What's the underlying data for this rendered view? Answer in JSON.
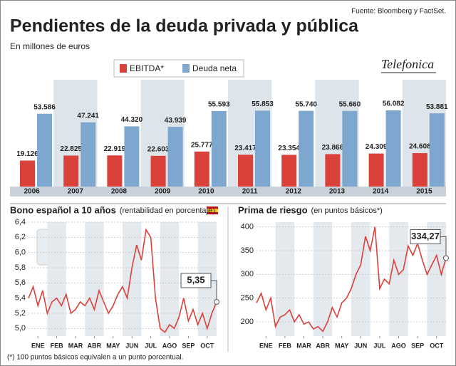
{
  "title": "Pendientes de la deuda privada y pública",
  "source": "Fuente: Bloomberg y FactSet.",
  "subtitle": "En millones de euros",
  "logo": "Telefonica",
  "footnote": "(*) 100 puntos básicos equivalen a un punto porcentual.",
  "chart_data": [
    {
      "type": "bar",
      "categories": [
        "2006",
        "2007",
        "2008",
        "2009",
        "2010",
        "2011",
        "2012",
        "2013",
        "2014",
        "2015"
      ],
      "series": [
        {
          "name": "EBITDA*",
          "color": "#d9413a",
          "values": [
            19126,
            22825,
            22919,
            22603,
            25777,
            23417,
            23354,
            23866,
            24309,
            24608
          ],
          "value_labels": [
            "19.126",
            "22.825",
            "22.919",
            "22.603",
            "25.777",
            "23.417",
            "23.354",
            "23.866",
            "24.309",
            "24.608"
          ]
        },
        {
          "name": "Deuda neta",
          "color": "#7ea7cf",
          "values": [
            53586,
            47241,
            44320,
            43939,
            55593,
            55853,
            55740,
            55660,
            56082,
            53881
          ],
          "value_labels": [
            "53.586",
            "47.241",
            "44.320",
            "43.939",
            "55.593",
            "55.853",
            "55.740",
            "55.660",
            "56.082",
            "53.881"
          ]
        }
      ]
    },
    {
      "type": "line",
      "title": "Bono español a 10 años",
      "subtitle": "(rentabilidad en porcentaje)",
      "color": "#d9413a",
      "x": [
        0,
        0.25,
        0.5,
        0.75,
        1,
        1.25,
        1.5,
        1.75,
        2,
        2.25,
        2.5,
        2.75,
        3,
        3.25,
        3.5,
        3.75,
        4,
        4.25,
        4.5,
        4.75,
        5,
        5.25,
        5.5,
        5.75,
        6,
        6.25,
        6.5,
        6.75,
        7,
        7.25,
        7.5,
        7.75,
        8,
        8.25,
        8.5,
        8.75,
        9,
        9.25,
        9.5,
        9.75,
        10
      ],
      "values": [
        5.4,
        5.55,
        5.3,
        5.5,
        5.2,
        5.35,
        5.4,
        5.3,
        5.45,
        5.2,
        5.25,
        5.35,
        5.3,
        5.4,
        5.25,
        5.5,
        5.35,
        5.2,
        5.3,
        5.45,
        5.55,
        5.4,
        5.8,
        6.1,
        5.9,
        6.3,
        6.2,
        5.4,
        5.0,
        4.95,
        5.05,
        5.0,
        5.15,
        5.4,
        5.1,
        5.25,
        5.05,
        5.2,
        5.0,
        5.2,
        5.35
      ],
      "annotation": {
        "value": 5.35,
        "label": "5,35"
      },
      "xlim": [
        0,
        10
      ],
      "xticks": [
        {
          "value": 0.5,
          "label": "ENE"
        },
        {
          "value": 1.5,
          "label": "FEB"
        },
        {
          "value": 2.5,
          "label": "MAR"
        },
        {
          "value": 3.5,
          "label": "ABR"
        },
        {
          "value": 4.5,
          "label": "MAY"
        },
        {
          "value": 5.5,
          "label": "JUN"
        },
        {
          "value": 6.5,
          "label": "JUL"
        },
        {
          "value": 7.5,
          "label": "AGO"
        },
        {
          "value": 8.5,
          "label": "SEP"
        },
        {
          "value": 9.5,
          "label": "OCT"
        }
      ],
      "ylim": [
        4.9,
        6.4
      ],
      "yticks": [
        {
          "value": 5.0,
          "label": "5,0"
        },
        {
          "value": 5.2,
          "label": "5,2"
        },
        {
          "value": 5.4,
          "label": "5,4"
        },
        {
          "value": 5.6,
          "label": "5,6"
        },
        {
          "value": 5.8,
          "label": "5,8"
        },
        {
          "value": 6.0,
          "label": "6,0"
        },
        {
          "value": 6.2,
          "label": "6,2"
        },
        {
          "value": 6.4,
          "label": "6,4"
        }
      ],
      "grid": true
    },
    {
      "type": "line",
      "title": "Prima de riesgo",
      "subtitle": "(en puntos básicos*)",
      "color": "#d9413a",
      "x": [
        0,
        0.25,
        0.5,
        0.75,
        1,
        1.25,
        1.5,
        1.75,
        2,
        2.25,
        2.5,
        2.75,
        3,
        3.25,
        3.5,
        3.75,
        4,
        4.25,
        4.5,
        4.75,
        5,
        5.25,
        5.5,
        5.75,
        6,
        6.25,
        6.5,
        6.75,
        7,
        7.25,
        7.5,
        7.75,
        8,
        8.25,
        8.5,
        8.75,
        9,
        9.25,
        9.5,
        9.75,
        10
      ],
      "values": [
        240,
        260,
        225,
        250,
        190,
        210,
        215,
        225,
        200,
        215,
        195,
        200,
        185,
        190,
        180,
        200,
        230,
        210,
        240,
        250,
        270,
        300,
        320,
        380,
        350,
        400,
        270,
        290,
        280,
        330,
        300,
        310,
        360,
        340,
        365,
        330,
        300,
        320,
        340,
        300,
        334.27
      ],
      "annotation": {
        "value": 334.27,
        "label": "334,27"
      },
      "xlim": [
        0,
        10
      ],
      "xticks": [
        {
          "value": 0.5,
          "label": "ENE"
        },
        {
          "value": 1.5,
          "label": "FEB"
        },
        {
          "value": 2.5,
          "label": "MAR"
        },
        {
          "value": 3.5,
          "label": "ABR"
        },
        {
          "value": 4.5,
          "label": "MAY"
        },
        {
          "value": 5.5,
          "label": "JUN"
        },
        {
          "value": 6.5,
          "label": "JUL"
        },
        {
          "value": 7.5,
          "label": "AGO"
        },
        {
          "value": 8.5,
          "label": "SEP"
        },
        {
          "value": 9.5,
          "label": "OCT"
        }
      ],
      "ylim": [
        170,
        410
      ],
      "yticks": [
        200,
        250,
        300,
        350,
        400
      ],
      "grid": true
    }
  ]
}
